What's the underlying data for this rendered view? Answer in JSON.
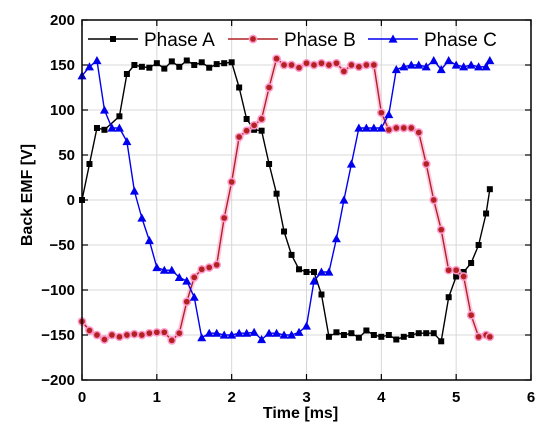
{
  "chart_data": {
    "type": "line",
    "title": "",
    "xlabel": "Time [ms]",
    "ylabel": "Back EMF [V]",
    "xlim": [
      0,
      6
    ],
    "ylim": [
      -200,
      200
    ],
    "xticks": [
      0,
      1,
      2,
      3,
      4,
      5,
      6
    ],
    "yticks": [
      -200,
      -150,
      -100,
      -50,
      0,
      50,
      100,
      150,
      200
    ],
    "xtick_labels": [
      "0",
      "1",
      "2",
      "3",
      "4",
      "5",
      "6"
    ],
    "ytick_labels": [
      "−200",
      "−150",
      "−100",
      "−50",
      "0",
      "50",
      "100",
      "150",
      "200"
    ],
    "grid": true,
    "legend_position": "top",
    "series": [
      {
        "name": "Phase A",
        "color": "#000000",
        "marker": "square",
        "x": [
          0.0,
          0.1,
          0.2,
          0.3,
          0.5,
          0.6,
          0.7,
          0.8,
          0.9,
          1.0,
          1.1,
          1.2,
          1.3,
          1.4,
          1.5,
          1.6,
          1.7,
          1.8,
          1.9,
          2.0,
          2.1,
          2.2,
          2.3,
          2.4,
          2.5,
          2.6,
          2.7,
          2.8,
          2.9,
          3.0,
          3.1,
          3.2,
          3.3,
          3.4,
          3.5,
          3.6,
          3.7,
          3.8,
          3.9,
          4.0,
          4.1,
          4.2,
          4.3,
          4.4,
          4.5,
          4.6,
          4.7,
          4.8,
          4.9,
          5.0,
          5.1,
          5.2,
          5.3,
          5.4,
          5.45
        ],
        "y": [
          0,
          40,
          80,
          78,
          93,
          140,
          150,
          148,
          147,
          152,
          146,
          154,
          148,
          155,
          150,
          153,
          147,
          151,
          152,
          153,
          125,
          90,
          78,
          77,
          40,
          7,
          -35,
          -61,
          -77,
          -80,
          -80,
          -105,
          -152,
          -147,
          -150,
          -148,
          -153,
          -145,
          -150,
          -152,
          -150,
          -155,
          -152,
          -150,
          -148,
          -148,
          -148,
          -157,
          -108,
          -85,
          -80,
          -70,
          -50,
          -15,
          12
        ]
      },
      {
        "name": "Phase B",
        "color": "#b22222",
        "marker": "circle",
        "x": [
          0.0,
          0.1,
          0.2,
          0.3,
          0.4,
          0.5,
          0.6,
          0.7,
          0.8,
          0.9,
          1.0,
          1.1,
          1.2,
          1.3,
          1.4,
          1.5,
          1.6,
          1.7,
          1.8,
          1.9,
          2.0,
          2.1,
          2.2,
          2.3,
          2.4,
          2.5,
          2.6,
          2.7,
          2.8,
          2.9,
          3.0,
          3.1,
          3.2,
          3.3,
          3.4,
          3.5,
          3.6,
          3.7,
          3.8,
          3.9,
          4.0,
          4.1,
          4.2,
          4.3,
          4.4,
          4.5,
          4.6,
          4.7,
          4.8,
          4.9,
          5.0,
          5.1,
          5.2,
          5.3,
          5.4,
          5.45
        ],
        "y": [
          -135,
          -145,
          -150,
          -155,
          -150,
          -152,
          -150,
          -149,
          -150,
          -148,
          -147,
          -147,
          -156,
          -148,
          -113,
          -86,
          -77,
          -75,
          -72,
          -20,
          20,
          70,
          77,
          83,
          90,
          125,
          157,
          150,
          150,
          147,
          152,
          150,
          152,
          150,
          152,
          143,
          150,
          148,
          150,
          150,
          97,
          78,
          80,
          80,
          80,
          75,
          40,
          0,
          -33,
          -78,
          -78,
          -85,
          -128,
          -152,
          -150,
          -152
        ]
      },
      {
        "name": "Phase C",
        "color": "#0000ee",
        "marker": "triangle",
        "x": [
          0.0,
          0.1,
          0.2,
          0.3,
          0.4,
          0.5,
          0.6,
          0.7,
          0.8,
          0.9,
          1.0,
          1.1,
          1.2,
          1.3,
          1.4,
          1.5,
          1.6,
          1.7,
          1.8,
          1.9,
          2.0,
          2.1,
          2.2,
          2.3,
          2.4,
          2.5,
          2.6,
          2.7,
          2.8,
          2.9,
          3.0,
          3.1,
          3.2,
          3.3,
          3.4,
          3.5,
          3.6,
          3.7,
          3.8,
          3.9,
          4.0,
          4.1,
          4.2,
          4.3,
          4.4,
          4.5,
          4.6,
          4.7,
          4.8,
          4.9,
          5.0,
          5.1,
          5.2,
          5.3,
          5.4,
          5.45
        ],
        "y": [
          138,
          148,
          155,
          100,
          80,
          80,
          65,
          10,
          -20,
          -45,
          -75,
          -78,
          -78,
          -86,
          -90,
          -108,
          -153,
          -148,
          -148,
          -150,
          -150,
          -148,
          -148,
          -147,
          -155,
          -148,
          -148,
          -150,
          -150,
          -147,
          -140,
          -90,
          -80,
          -80,
          -43,
          0,
          40,
          80,
          80,
          80,
          80,
          95,
          145,
          148,
          150,
          150,
          148,
          155,
          145,
          155,
          150,
          148,
          150,
          148,
          148,
          155
        ]
      }
    ]
  }
}
